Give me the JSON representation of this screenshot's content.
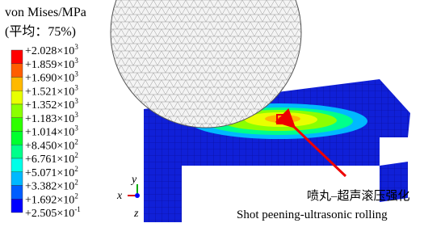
{
  "legend": {
    "title": "von Mises/MPa",
    "subtitle": "(平均：75%)",
    "levels": [
      {
        "coefficient": "+2.028",
        "times": "×10",
        "exponent": "3"
      },
      {
        "coefficient": "+1.859",
        "times": "×10",
        "exponent": "3"
      },
      {
        "coefficient": "+1.690",
        "times": "×10",
        "exponent": "3"
      },
      {
        "coefficient": "+1.521",
        "times": "×10",
        "exponent": "3"
      },
      {
        "coefficient": "+1.352",
        "times": "×10",
        "exponent": "3"
      },
      {
        "coefficient": "+1.183",
        "times": "×10",
        "exponent": "3"
      },
      {
        "coefficient": "+1.014",
        "times": "×10",
        "exponent": "3"
      },
      {
        "coefficient": "+8.450",
        "times": "×10",
        "exponent": "2"
      },
      {
        "coefficient": "+6.761",
        "times": "×10",
        "exponent": "2"
      },
      {
        "coefficient": "+5.071",
        "times": "×10",
        "exponent": "2"
      },
      {
        "coefficient": "+3.382",
        "times": "×10",
        "exponent": "2"
      },
      {
        "coefficient": "+1.692",
        "times": "×10",
        "exponent": "2"
      },
      {
        "coefficient": "+2.505",
        "times": "×10",
        "exponent": "-1"
      }
    ],
    "colors": [
      "#ff0000",
      "#ff5d00",
      "#ffb900",
      "#e8ff00",
      "#8bff00",
      "#2eff00",
      "#00ff2e",
      "#00ff8b",
      "#00ffe8",
      "#00b9ff",
      "#005dff",
      "#0000ff"
    ]
  },
  "annotation": {
    "chinese": "喷丸–超声滚压强化",
    "english": "Shot peening-ultrasonic rolling"
  },
  "triad": {
    "x": "x",
    "y": "y",
    "z": "z"
  }
}
